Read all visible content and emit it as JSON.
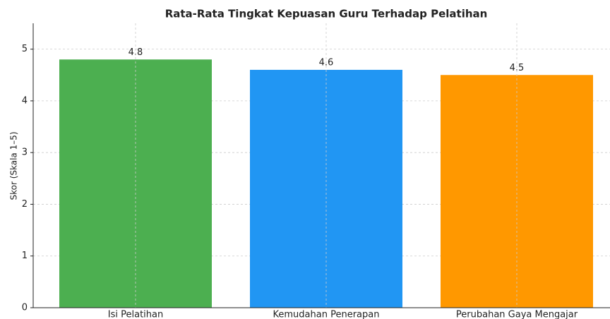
{
  "chart_data": {
    "type": "bar",
    "title": "Rata-Rata Tingkat Kepuasan Guru Terhadap Pelatihan",
    "y_label": "Skor (Skala 1–5)",
    "categories": [
      "Isi Pelatihan",
      "Kemudahan Penerapan",
      "Perubahan Gaya Mengajar"
    ],
    "values": [
      4.8,
      4.6,
      4.5
    ],
    "colors": [
      "#4caf50",
      "#2196f3",
      "#ff9800"
    ],
    "ylim": [
      0,
      5.5
    ],
    "yticks": [
      0,
      1,
      2,
      3,
      4,
      5
    ],
    "grid": true
  }
}
